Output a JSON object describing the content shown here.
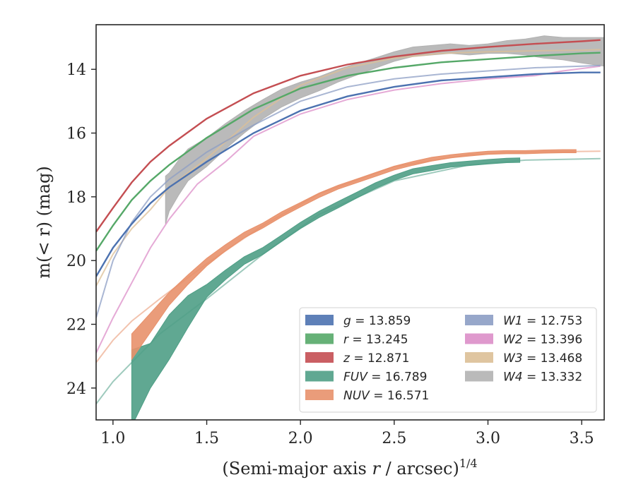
{
  "chart_data": {
    "type": "line",
    "title": "",
    "xlabel": "(Semi-major axis r / arcsec)",
    "xlabel_italic_var": "r",
    "xlabel_exponent": "1/4",
    "ylabel": "m(< r) (mag)",
    "xlim": [
      0.91,
      3.62
    ],
    "ylim": [
      25.0,
      12.6
    ],
    "y_inverted": true,
    "xticks": [
      1.0,
      1.5,
      2.0,
      2.5,
      3.0,
      3.5
    ],
    "xtick_labels": [
      "1.0",
      "1.5",
      "2.0",
      "2.5",
      "3.0",
      "3.5"
    ],
    "yticks": [
      14,
      16,
      18,
      20,
      22,
      24
    ],
    "ytick_labels": [
      "14",
      "16",
      "18",
      "20",
      "22",
      "24"
    ],
    "grid": false,
    "legend_position": "bottom-right",
    "legend_columns": 2,
    "series": [
      {
        "name": "g = 13.859",
        "band": "g",
        "value": "13.859",
        "color": "#4c72b0",
        "x": [
          0.91,
          1.0,
          1.1,
          1.2,
          1.3,
          1.5,
          1.75,
          2.0,
          2.25,
          2.5,
          2.75,
          3.0,
          3.25,
          3.5,
          3.6
        ],
        "y": [
          20.5,
          19.6,
          18.85,
          18.2,
          17.7,
          16.9,
          16.0,
          15.3,
          14.85,
          14.55,
          14.35,
          14.25,
          14.15,
          14.1,
          14.1
        ],
        "band_half_width": 0.04,
        "faint": false
      },
      {
        "name": "r = 13.245",
        "band": "r",
        "value": "13.245",
        "color": "#55a868",
        "x": [
          0.91,
          1.0,
          1.1,
          1.2,
          1.3,
          1.5,
          1.75,
          2.0,
          2.25,
          2.5,
          2.75,
          3.0,
          3.25,
          3.5,
          3.6
        ],
        "y": [
          19.7,
          18.9,
          18.1,
          17.5,
          17.0,
          16.15,
          15.25,
          14.6,
          14.2,
          13.95,
          13.78,
          13.68,
          13.58,
          13.5,
          13.48
        ],
        "band_half_width": 0.04,
        "faint": false
      },
      {
        "name": "z = 12.871",
        "band": "z",
        "value": "12.871",
        "color": "#c44e52",
        "x": [
          0.91,
          1.0,
          1.1,
          1.2,
          1.3,
          1.5,
          1.75,
          2.0,
          2.25,
          2.5,
          2.75,
          3.0,
          3.25,
          3.5,
          3.6
        ],
        "y": [
          19.1,
          18.35,
          17.55,
          16.9,
          16.4,
          15.55,
          14.75,
          14.2,
          13.85,
          13.6,
          13.42,
          13.3,
          13.2,
          13.12,
          13.08
        ],
        "band_half_width": 0.04,
        "faint": false
      },
      {
        "name": "FUV = 16.789",
        "band": "FUV",
        "value": "16.789",
        "color": "#4f9f86",
        "x": [
          1.1,
          1.2,
          1.3,
          1.4,
          1.5,
          1.6,
          1.7,
          1.8,
          1.9,
          2.0,
          2.1,
          2.2,
          2.3,
          2.4,
          2.5,
          2.6,
          2.7,
          2.8,
          2.9,
          3.0,
          3.1,
          3.17
        ],
        "y": [
          24.0,
          23.3,
          22.4,
          21.6,
          20.95,
          20.45,
          20.0,
          19.7,
          19.3,
          18.9,
          18.55,
          18.25,
          17.95,
          17.65,
          17.4,
          17.2,
          17.1,
          17.0,
          16.95,
          16.9,
          16.86,
          16.85
        ],
        "band_half": [
          1.2,
          0.7,
          0.7,
          0.5,
          0.2,
          0.15,
          0.12,
          0.11,
          0.1,
          0.1,
          0.1,
          0.1,
          0.09,
          0.09,
          0.08,
          0.08,
          0.08,
          0.07,
          0.07,
          0.07,
          0.07,
          0.07
        ],
        "faint_x": [
          0.91,
          1.0,
          1.1,
          1.25,
          1.5,
          1.8,
          2.1,
          2.5,
          2.9,
          3.2,
          3.6
        ],
        "faint_y": [
          24.5,
          23.8,
          23.2,
          22.3,
          21.2,
          19.8,
          18.55,
          17.5,
          17.0,
          16.85,
          16.8
        ]
      },
      {
        "name": "NUV = 16.571",
        "band": "NUV",
        "value": "16.571",
        "color": "#e8916b",
        "x": [
          1.1,
          1.2,
          1.3,
          1.4,
          1.5,
          1.6,
          1.7,
          1.8,
          1.9,
          2.0,
          2.1,
          2.2,
          2.3,
          2.4,
          2.5,
          2.6,
          2.7,
          2.8,
          2.9,
          3.0,
          3.1,
          3.2,
          3.3,
          3.4,
          3.47
        ],
        "y": [
          22.7,
          21.95,
          21.2,
          20.6,
          20.05,
          19.6,
          19.2,
          18.9,
          18.55,
          18.25,
          17.95,
          17.7,
          17.5,
          17.3,
          17.1,
          16.95,
          16.82,
          16.73,
          16.67,
          16.62,
          16.6,
          16.6,
          16.58,
          16.57,
          16.57
        ],
        "band_half": [
          0.4,
          0.3,
          0.2,
          0.15,
          0.12,
          0.1,
          0.09,
          0.08,
          0.08,
          0.07,
          0.07,
          0.06,
          0.06,
          0.06,
          0.06,
          0.06,
          0.06,
          0.05,
          0.05,
          0.05,
          0.05,
          0.05,
          0.05,
          0.05,
          0.05
        ],
        "faint_x": [
          0.91,
          1.0,
          1.1,
          1.25,
          1.5,
          1.8,
          2.1,
          2.5,
          2.9,
          3.2,
          3.6
        ],
        "faint_y": [
          23.2,
          22.5,
          21.9,
          21.2,
          20.1,
          18.9,
          17.9,
          17.05,
          16.68,
          16.6,
          16.57
        ]
      },
      {
        "name": "W1 = 12.753",
        "band": "W1",
        "value": "12.753",
        "color": "#8c9dc4",
        "x": [
          0.91,
          1.0,
          1.1,
          1.2,
          1.3,
          1.5,
          1.75,
          2.0,
          2.25,
          2.5,
          2.75,
          3.0,
          3.25,
          3.5,
          3.6
        ],
        "y": [
          21.8,
          20.0,
          18.8,
          18.0,
          17.45,
          16.6,
          15.75,
          15.0,
          14.55,
          14.3,
          14.15,
          14.05,
          13.95,
          13.9,
          13.88
        ],
        "band_half_width": 0.03,
        "faint": true
      },
      {
        "name": "W2 = 13.396",
        "band": "W2",
        "value": "13.396",
        "color": "#dc8ec8",
        "x": [
          0.91,
          1.0,
          1.1,
          1.2,
          1.3,
          1.45,
          1.6,
          1.75,
          2.0,
          2.25,
          2.5,
          2.75,
          3.0,
          3.25,
          3.4,
          3.6
        ],
        "y": [
          22.9,
          21.8,
          20.7,
          19.6,
          18.7,
          17.6,
          16.9,
          16.1,
          15.4,
          14.95,
          14.65,
          14.45,
          14.3,
          14.2,
          14.05,
          13.9
        ],
        "band_half_width": 0.03,
        "faint": true
      },
      {
        "name": "W3 = 13.468",
        "band": "W3",
        "value": "13.468",
        "color": "#dcbf96",
        "x": [
          0.91,
          1.0,
          1.1,
          1.2,
          1.3,
          1.5,
          1.75,
          2.0,
          2.25,
          2.5,
          2.75,
          3.0,
          3.25,
          3.5,
          3.6
        ],
        "y": [
          20.8,
          19.8,
          19.0,
          18.4,
          17.7,
          16.8,
          15.5,
          14.5,
          13.95,
          13.65,
          13.5,
          13.45,
          13.42,
          13.4,
          13.38
        ],
        "band_half_width": 0.03,
        "faint": true
      },
      {
        "name": "W4 = 13.332",
        "band": "W4",
        "value": "13.332",
        "color": "#b2b2b2",
        "x": [
          1.28,
          1.3,
          1.35,
          1.4,
          1.5,
          1.6,
          1.7,
          1.8,
          1.9,
          2.0,
          2.1,
          2.2,
          2.3,
          2.4,
          2.5,
          2.6,
          2.7,
          2.8,
          2.9,
          3.0,
          3.1,
          3.2,
          3.3,
          3.4,
          3.5,
          3.62
        ],
        "y": [
          18.1,
          17.85,
          17.4,
          17.0,
          16.6,
          16.1,
          15.65,
          15.25,
          14.9,
          14.65,
          14.45,
          14.2,
          14.0,
          13.8,
          13.6,
          13.45,
          13.4,
          13.35,
          13.4,
          13.35,
          13.3,
          13.3,
          13.3,
          13.35,
          13.4,
          13.45
        ],
        "band_half": [
          0.75,
          0.6,
          0.55,
          0.5,
          0.45,
          0.4,
          0.35,
          0.3,
          0.28,
          0.25,
          0.22,
          0.2,
          0.18,
          0.16,
          0.15,
          0.15,
          0.15,
          0.15,
          0.15,
          0.15,
          0.2,
          0.25,
          0.35,
          0.35,
          0.4,
          0.45
        ],
        "faint": false
      }
    ],
    "legend_order": [
      [
        "g",
        "13.859",
        "#4c72b0"
      ],
      [
        "r",
        "13.245",
        "#55a868"
      ],
      [
        "z",
        "12.871",
        "#c44e52"
      ],
      [
        "FUV",
        "16.789",
        "#4f9f86"
      ],
      [
        "NUV",
        "16.571",
        "#e8916b"
      ],
      [
        "W1",
        "12.753",
        "#8c9dc4"
      ],
      [
        "W2",
        "13.396",
        "#dc8ec8"
      ],
      [
        "W3",
        "13.468",
        "#dcbf96"
      ],
      [
        "W4",
        "13.332",
        "#b2b2b2"
      ]
    ]
  }
}
